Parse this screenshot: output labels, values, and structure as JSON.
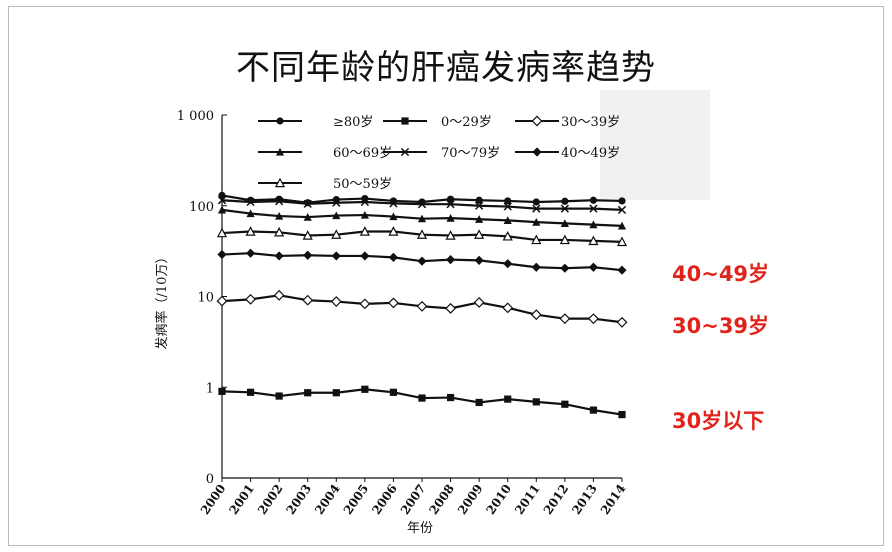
{
  "title": "不同年龄的肝癌发病率趋势",
  "callouts": [
    "40~49岁",
    "30~39岁",
    "30岁以下"
  ],
  "colors": {
    "line": "#111111",
    "callout": "#e0241c"
  },
  "chart_data": {
    "type": "line",
    "xlabel": "年份",
    "ylabel": "发病率（/10万）",
    "yscale": "log",
    "ylim_ticks": [
      "0",
      "1",
      "10",
      "100",
      "1 000"
    ],
    "x": [
      2000,
      2001,
      2002,
      2003,
      2004,
      2005,
      2006,
      2007,
      2008,
      2009,
      2010,
      2011,
      2012,
      2013,
      2014
    ],
    "legend": {
      "placement": "top",
      "columns": 3
    },
    "series": [
      {
        "name": "≥80岁",
        "marker": "filled-circle",
        "values": [
          130,
          115,
          118,
          108,
          117,
          120,
          113,
          110,
          118,
          115,
          113,
          110,
          112,
          115,
          113
        ]
      },
      {
        "name": "0～29岁",
        "marker": "filled-square",
        "values": [
          0.9,
          0.88,
          0.8,
          0.87,
          0.87,
          0.95,
          0.88,
          0.76,
          0.77,
          0.68,
          0.74,
          0.69,
          0.65,
          0.56,
          0.5
        ]
      },
      {
        "name": "30～39岁",
        "marker": "open-diamond",
        "values": [
          8.9,
          9.3,
          10.3,
          9.1,
          8.8,
          8.3,
          8.5,
          7.8,
          7.4,
          8.6,
          7.5,
          6.3,
          5.7,
          5.7,
          5.2
        ]
      },
      {
        "name": "60～69岁",
        "marker": "filled-triangle",
        "values": [
          90,
          82,
          77,
          75,
          78,
          79,
          76,
          72,
          73,
          71,
          69,
          66,
          64,
          62,
          60
        ]
      },
      {
        "name": "70～79岁",
        "marker": "cross",
        "values": [
          115,
          110,
          112,
          105,
          108,
          110,
          106,
          104,
          104,
          100,
          98,
          93,
          93,
          93,
          90
        ]
      },
      {
        "name": "40～49岁",
        "marker": "filled-diamond",
        "values": [
          29,
          30,
          28,
          28.5,
          28,
          28,
          27,
          24.5,
          25.5,
          25,
          23,
          21,
          20.5,
          21,
          19.5
        ]
      },
      {
        "name": "50～59岁",
        "marker": "open-triangle",
        "values": [
          50,
          52,
          51,
          47,
          48,
          52,
          52,
          48,
          47,
          48,
          46,
          42,
          42,
          41,
          40
        ]
      }
    ]
  }
}
